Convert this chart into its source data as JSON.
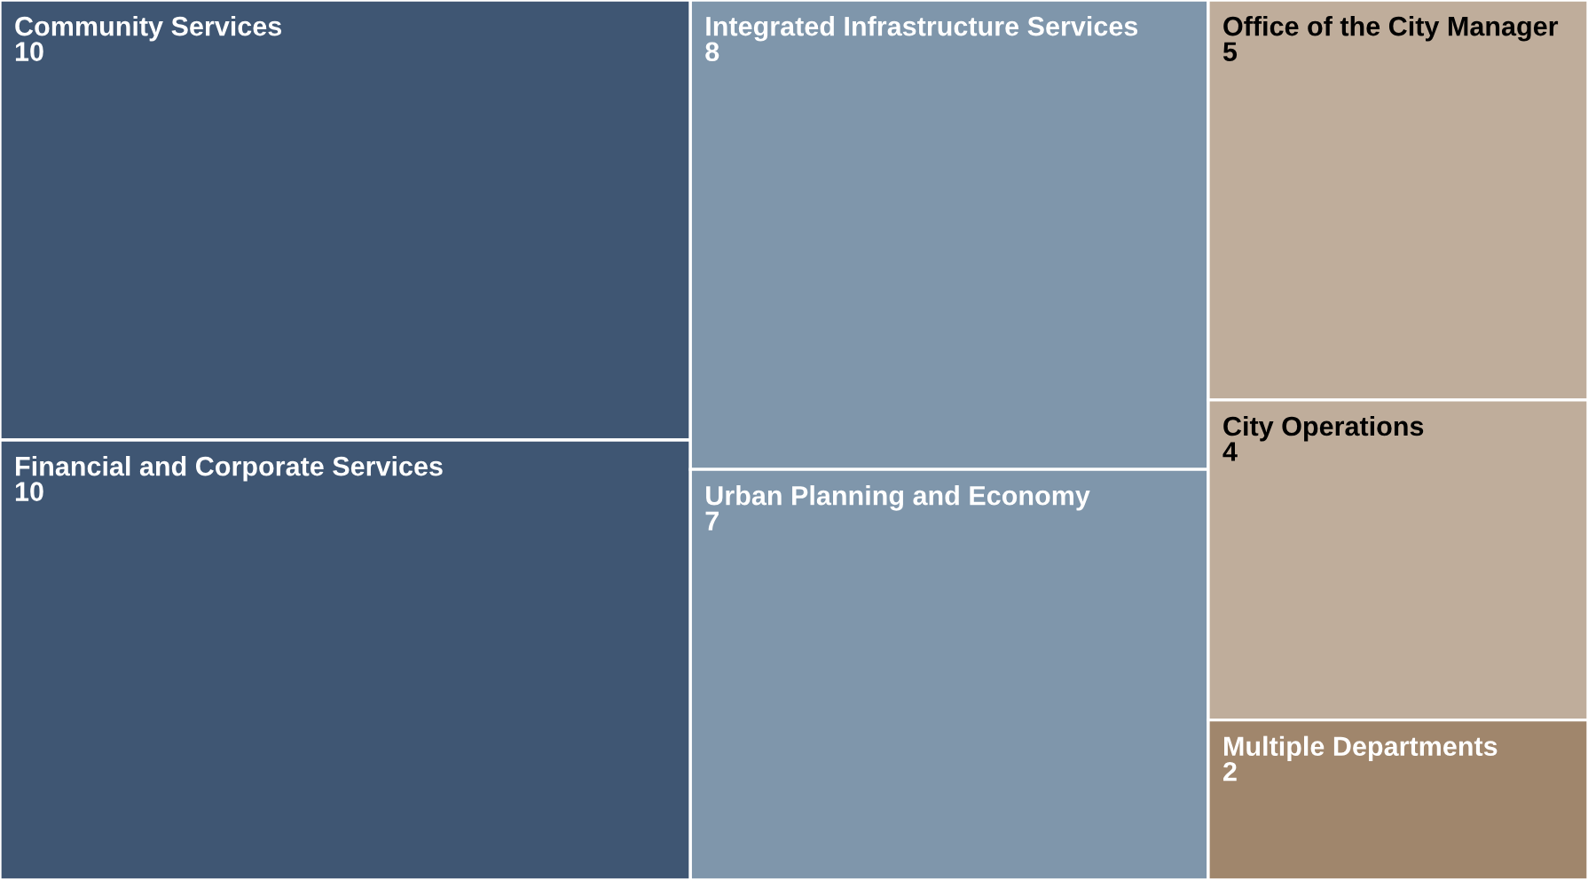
{
  "chart_data": {
    "type": "other",
    "categories": [
      "Community Services",
      "Financial and Corporate Services",
      "Integrated Infrastructure Services",
      "Urban Planning and Economy",
      "Office of the City Manager",
      "City Operations",
      "Multiple Departments"
    ],
    "values": [
      10,
      10,
      8,
      7,
      5,
      4,
      2
    ],
    "colors": [
      "#3f5673",
      "#3f5673",
      "#7f96ab",
      "#7f96ab",
      "#bfad9b",
      "#bfad9b",
      "#a0866c"
    ],
    "data_labels": true
  }
}
